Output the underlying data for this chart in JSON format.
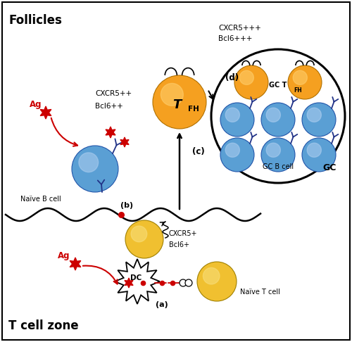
{
  "fig_width": 5.0,
  "fig_height": 4.86,
  "dpi": 100,
  "bg_color": "#ffffff",
  "border_color": "#000000",
  "yellow_cell_color": "#f0c030",
  "yellow_cell_highlight": "#f8e080",
  "blue_cell_color": "#5a9fd4",
  "blue_cell_edge": "#2255aa",
  "blue_cell_highlight": "#aaccee",
  "orange_cell_color": "#f5a020",
  "orange_cell_highlight": "#ffd070",
  "red_color": "#cc0000",
  "dark_blue": "#223388",
  "black": "#000000",
  "follicles_label": "Follicles",
  "tcell_label": "T cell zone",
  "dc_label": "DC",
  "ag_label": "Ag",
  "naive_b_label": "Naïve B cell",
  "naive_t_label": "Naïve T cell",
  "cxcr5_a": "CXCR5+",
  "bcl6_a": "Bcl6+",
  "cxcr5_b": "CXCR5++",
  "bcl6_b": "Bcl6++",
  "cxcr5_c": "CXCR5+++",
  "bcl6_c": "Bcl6+++",
  "gc_b_label": "GC B cell",
  "gc_label": "GC",
  "step_a": "(a)",
  "step_b": "(b)",
  "step_c": "(c)",
  "step_d": "(d)"
}
